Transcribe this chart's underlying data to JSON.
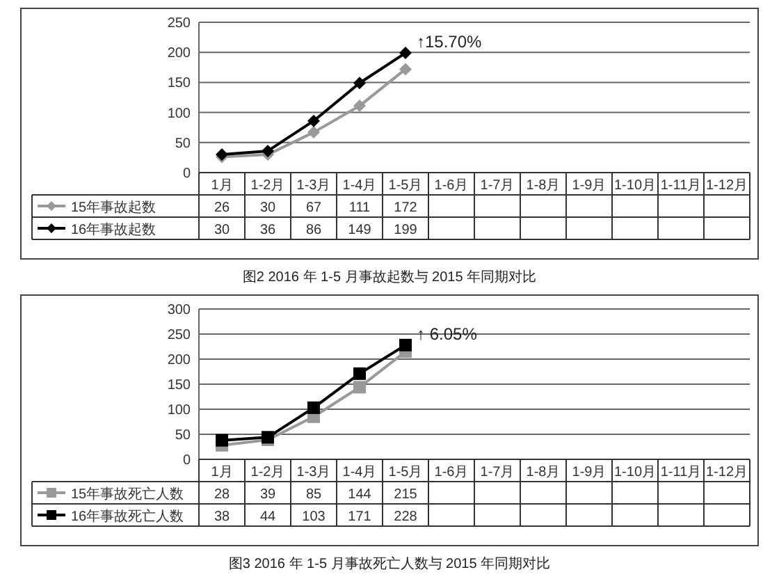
{
  "chart_data": [
    {
      "type": "line",
      "title": "图2  2016 年 1-5 月事故起数与 2015 年同期对比",
      "categories": [
        "1月",
        "1-2月",
        "1-3月",
        "1-4月",
        "1-5月",
        "1-6月",
        "1-7月",
        "1-8月",
        "1-9月",
        "1-10月",
        "1-11月",
        "1-12月"
      ],
      "series": [
        {
          "name": "15年事故起数",
          "color": "#999999",
          "values": [
            26,
            30,
            67,
            111,
            172,
            null,
            null,
            null,
            null,
            null,
            null,
            null
          ]
        },
        {
          "name": "16年事故起数",
          "color": "#000000",
          "values": [
            30,
            36,
            86,
            149,
            199,
            null,
            null,
            null,
            null,
            null,
            null,
            null
          ]
        }
      ],
      "ylim": [
        0,
        250
      ],
      "yticks": [
        0,
        50,
        100,
        150,
        200,
        250
      ],
      "grid": "y",
      "marker": "diamond",
      "legend": "bottom",
      "data_labels": true,
      "annotations": [
        {
          "text": "↑15.70%",
          "x": "1-5月",
          "y": 199
        }
      ]
    },
    {
      "type": "line",
      "title": "图3  2016 年 1-5 月事故死亡人数与 2015 年同期对比",
      "categories": [
        "1月",
        "1-2月",
        "1-3月",
        "1-4月",
        "1-5月",
        "1-6月",
        "1-7月",
        "1-8月",
        "1-9月",
        "1-10月",
        "1-11月",
        "1-12月"
      ],
      "series": [
        {
          "name": "15年事故死亡人数",
          "color": "#999999",
          "values": [
            28,
            39,
            85,
            144,
            215,
            null,
            null,
            null,
            null,
            null,
            null,
            null
          ]
        },
        {
          "name": "16年事故死亡人数",
          "color": "#000000",
          "values": [
            38,
            44,
            103,
            171,
            228,
            null,
            null,
            null,
            null,
            null,
            null,
            null
          ]
        }
      ],
      "ylim": [
        0,
        300
      ],
      "yticks": [
        0,
        50,
        100,
        150,
        200,
        250,
        300
      ],
      "grid": "y",
      "marker": "square",
      "legend": "bottom",
      "data_labels": true,
      "annotations": [
        {
          "text": "↑ 6.05%",
          "x": "1-5月",
          "y": 228
        }
      ]
    }
  ]
}
